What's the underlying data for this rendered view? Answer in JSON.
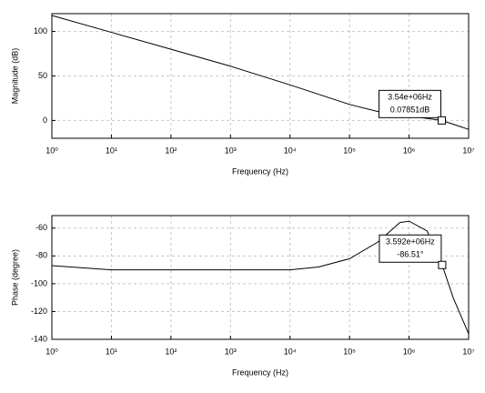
{
  "chart_data": [
    {
      "type": "line",
      "xscale": "log",
      "grid": true,
      "color": "#000000",
      "xlabel": "Frequency (Hz)",
      "ylabel": "Magnitude (dB)",
      "x": [
        1,
        10,
        100,
        1000,
        10000,
        100000,
        300000,
        1000000,
        3540000,
        10000000
      ],
      "values": [
        118,
        99,
        80,
        61,
        40,
        18,
        10,
        5,
        0.07851,
        -10
      ],
      "xlim": [
        1,
        10000000
      ],
      "xticks": [
        {
          "value": 1,
          "label": "10⁰"
        },
        {
          "value": 10,
          "label": "10¹"
        },
        {
          "value": 100,
          "label": "10²"
        },
        {
          "value": 1000,
          "label": "10³"
        },
        {
          "value": 10000,
          "label": "10⁴"
        },
        {
          "value": 100000,
          "label": "10⁵"
        },
        {
          "value": 1000000,
          "label": "10⁶"
        },
        {
          "value": 10000000,
          "label": "10⁷"
        }
      ],
      "ylim": [
        -20,
        120
      ],
      "yticks": [
        0,
        50,
        100
      ],
      "datatip": {
        "x": 3540000,
        "y": 0.07851,
        "labels": [
          "3.54e+06Hz",
          "0.07851dB"
        ]
      }
    },
    {
      "type": "line",
      "xscale": "log",
      "grid": true,
      "color": "#000000",
      "xlabel": "Frequency (Hz)",
      "ylabel": "Phase (degree)",
      "x": [
        1,
        10,
        100,
        1000,
        10000,
        30000,
        100000,
        300000,
        700000,
        1000000,
        2000000,
        3592000,
        5500000,
        10000000
      ],
      "values": [
        -87,
        -90,
        -90,
        -90,
        -90,
        -88,
        -82,
        -70,
        -56,
        -55,
        -62,
        -86.51,
        -110,
        -136
      ],
      "xlim": [
        1,
        10000000
      ],
      "xticks": [
        {
          "value": 1,
          "label": "10⁰"
        },
        {
          "value": 10,
          "label": "10¹"
        },
        {
          "value": 100,
          "label": "10²"
        },
        {
          "value": 1000,
          "label": "10³"
        },
        {
          "value": 10000,
          "label": "10⁴"
        },
        {
          "value": 100000,
          "label": "10⁵"
        },
        {
          "value": 1000000,
          "label": "10⁶"
        },
        {
          "value": 10000000,
          "label": "10⁷"
        }
      ],
      "ylim": [
        -140,
        -51
      ],
      "yticks": [
        -140,
        -120,
        -100,
        -80,
        -60
      ],
      "datatip": {
        "x": 3592000,
        "y": -86.51,
        "labels": [
          "3.592e+06Hz",
          "-86.51°"
        ]
      }
    }
  ]
}
